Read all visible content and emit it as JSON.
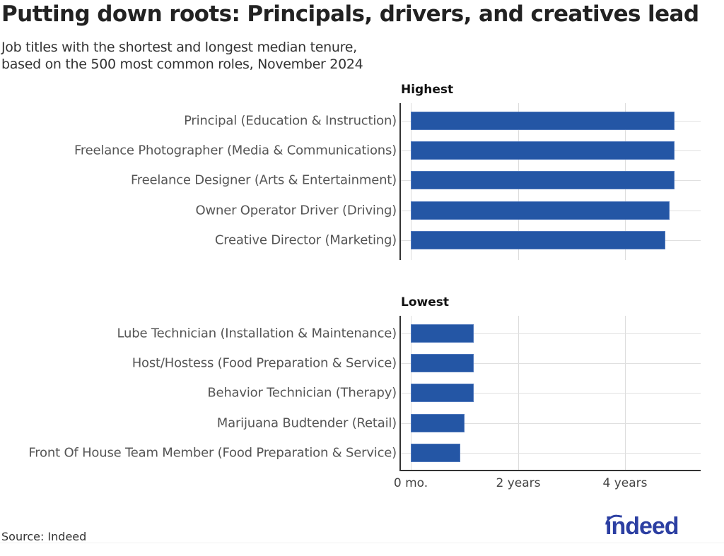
{
  "header": {
    "title": "Putting down roots: Principals, drivers, and creatives lead",
    "subtitle_lines": [
      "Job titles with the shortest and longest median tenure,",
      "based on the 500 most common roles, November 2024"
    ]
  },
  "footer": {
    "source": "Source: Indeed",
    "logo_text": "indeed"
  },
  "colors": {
    "bar": "#2456a5",
    "logo": "#2c3fa2"
  },
  "chart_data": {
    "type": "bar",
    "orientation": "horizontal",
    "title": "Putting down roots: Principals, drivers, and creatives lead",
    "subtitle": "Job titles with the shortest and longest median tenure, based on the 500 most common roles, November 2024",
    "xlabel": "",
    "ylabel": "",
    "unit": "years",
    "xlim": [
      0,
      5.4
    ],
    "x_ticks": [
      0,
      2,
      4
    ],
    "x_tick_labels": [
      "0 mo.",
      "2 years",
      "4 years"
    ],
    "grid": true,
    "panels": [
      {
        "name": "Highest",
        "categories": [
          "Principal (Education & Instruction)",
          "Freelance Photographer (Media & Communications)",
          "Freelance Designer (Arts & Entertainment)",
          "Owner Operator Driver (Driving)",
          "Creative Director (Marketing)"
        ],
        "values": [
          4.92,
          4.92,
          4.92,
          4.83,
          4.75
        ]
      },
      {
        "name": "Lowest",
        "categories": [
          "Lube Technician (Installation & Maintenance)",
          "Host/Hostess (Food Preparation & Service)",
          "Behavior Technician (Therapy)",
          "Marijuana Budtender (Retail)",
          "Front Of House Team Member (Food Preparation & Service)"
        ],
        "values": [
          1.17,
          1.17,
          1.17,
          1.0,
          0.92
        ]
      }
    ],
    "source": "Source: Indeed"
  }
}
